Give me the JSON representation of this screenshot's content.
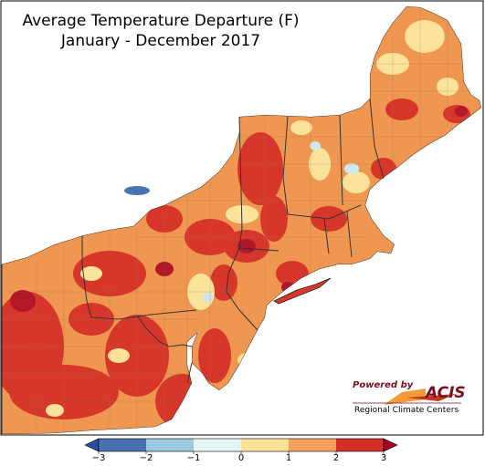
{
  "title": {
    "line1": "Average Temperature Departure (F)",
    "line2": "January - December 2017"
  },
  "logo": {
    "powered_by": "Powered by",
    "name": "ACIS",
    "org": "Regional Climate Centers"
  },
  "legend": {
    "ticks": [
      "−3",
      "−2",
      "−1",
      "0",
      "1",
      "2",
      "3"
    ],
    "bins": [
      {
        "range": [
          -3,
          -2
        ],
        "color": "#4a72b0"
      },
      {
        "range": [
          -2,
          -1
        ],
        "color": "#9ac8df"
      },
      {
        "range": [
          -1,
          0
        ],
        "color": "#e6f5f3"
      },
      {
        "range": [
          0,
          1
        ],
        "color": "#fce39a"
      },
      {
        "range": [
          1,
          2
        ],
        "color": "#f4a05a"
      },
      {
        "range": [
          2,
          3
        ],
        "color": "#d73027"
      }
    ],
    "under_color": "#2c4f9a",
    "over_color": "#a50026"
  },
  "colors": {
    "land_base": "#ef9750",
    "warm": "#d7372a",
    "hot": "#b3172a",
    "mild": "#fce39a",
    "cool": "#cde9ee",
    "cold": "#4a72b0",
    "water": "#ffffff",
    "border": "#333333"
  }
}
